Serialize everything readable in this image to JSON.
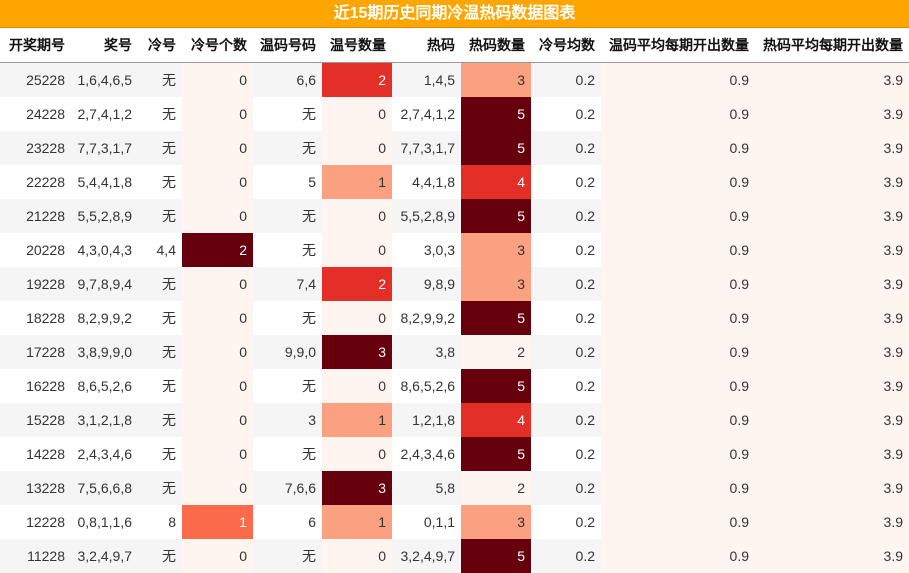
{
  "title": "近15期历史同期冷温热码数据图表",
  "headers": [
    "开奖期号",
    "奖号",
    "冷号",
    "冷号个数",
    "温码号码",
    "温号数量",
    "热码",
    "热码数量",
    "冷号均数",
    "温码平均每期开出数量",
    "热码平均每期开出数量"
  ],
  "colors": {
    "header_bg": "#ffa500",
    "pink": "#fff5f0",
    "light": "#fca082",
    "mid": "#fb6a4a",
    "strong": "#e32f27",
    "dark": "#67000d"
  },
  "rows": [
    {
      "issue": "25228",
      "nums": "1,6,4,6,5",
      "cold": "无",
      "cold_count": "0",
      "warm": "6,6",
      "warm_count": "2",
      "hot": "1,4,5",
      "hot_count": "3",
      "cold_avg": "0.2",
      "warm_avg": "0.9",
      "hot_avg": "3.9"
    },
    {
      "issue": "24228",
      "nums": "2,7,4,1,2",
      "cold": "无",
      "cold_count": "0",
      "warm": "无",
      "warm_count": "0",
      "hot": "2,7,4,1,2",
      "hot_count": "5",
      "cold_avg": "0.2",
      "warm_avg": "0.9",
      "hot_avg": "3.9"
    },
    {
      "issue": "23228",
      "nums": "7,7,3,1,7",
      "cold": "无",
      "cold_count": "0",
      "warm": "无",
      "warm_count": "0",
      "hot": "7,7,3,1,7",
      "hot_count": "5",
      "cold_avg": "0.2",
      "warm_avg": "0.9",
      "hot_avg": "3.9"
    },
    {
      "issue": "22228",
      "nums": "5,4,4,1,8",
      "cold": "无",
      "cold_count": "0",
      "warm": "5",
      "warm_count": "1",
      "hot": "4,4,1,8",
      "hot_count": "4",
      "cold_avg": "0.2",
      "warm_avg": "0.9",
      "hot_avg": "3.9"
    },
    {
      "issue": "21228",
      "nums": "5,5,2,8,9",
      "cold": "无",
      "cold_count": "0",
      "warm": "无",
      "warm_count": "0",
      "hot": "5,5,2,8,9",
      "hot_count": "5",
      "cold_avg": "0.2",
      "warm_avg": "0.9",
      "hot_avg": "3.9"
    },
    {
      "issue": "20228",
      "nums": "4,3,0,4,3",
      "cold": "4,4",
      "cold_count": "2",
      "warm": "无",
      "warm_count": "0",
      "hot": "3,0,3",
      "hot_count": "3",
      "cold_avg": "0.2",
      "warm_avg": "0.9",
      "hot_avg": "3.9"
    },
    {
      "issue": "19228",
      "nums": "9,7,8,9,4",
      "cold": "无",
      "cold_count": "0",
      "warm": "7,4",
      "warm_count": "2",
      "hot": "9,8,9",
      "hot_count": "3",
      "cold_avg": "0.2",
      "warm_avg": "0.9",
      "hot_avg": "3.9"
    },
    {
      "issue": "18228",
      "nums": "8,2,9,9,2",
      "cold": "无",
      "cold_count": "0",
      "warm": "无",
      "warm_count": "0",
      "hot": "8,2,9,9,2",
      "hot_count": "5",
      "cold_avg": "0.2",
      "warm_avg": "0.9",
      "hot_avg": "3.9"
    },
    {
      "issue": "17228",
      "nums": "3,8,9,9,0",
      "cold": "无",
      "cold_count": "0",
      "warm": "9,9,0",
      "warm_count": "3",
      "hot": "3,8",
      "hot_count": "2",
      "cold_avg": "0.2",
      "warm_avg": "0.9",
      "hot_avg": "3.9"
    },
    {
      "issue": "16228",
      "nums": "8,6,5,2,6",
      "cold": "无",
      "cold_count": "0",
      "warm": "无",
      "warm_count": "0",
      "hot": "8,6,5,2,6",
      "hot_count": "5",
      "cold_avg": "0.2",
      "warm_avg": "0.9",
      "hot_avg": "3.9"
    },
    {
      "issue": "15228",
      "nums": "3,1,2,1,8",
      "cold": "无",
      "cold_count": "0",
      "warm": "3",
      "warm_count": "1",
      "hot": "1,2,1,8",
      "hot_count": "4",
      "cold_avg": "0.2",
      "warm_avg": "0.9",
      "hot_avg": "3.9"
    },
    {
      "issue": "14228",
      "nums": "2,4,3,4,6",
      "cold": "无",
      "cold_count": "0",
      "warm": "无",
      "warm_count": "0",
      "hot": "2,4,3,4,6",
      "hot_count": "5",
      "cold_avg": "0.2",
      "warm_avg": "0.9",
      "hot_avg": "3.9"
    },
    {
      "issue": "13228",
      "nums": "7,5,6,6,8",
      "cold": "无",
      "cold_count": "0",
      "warm": "7,6,6",
      "warm_count": "3",
      "hot": "5,8",
      "hot_count": "2",
      "cold_avg": "0.2",
      "warm_avg": "0.9",
      "hot_avg": "3.9"
    },
    {
      "issue": "12228",
      "nums": "0,8,1,1,6",
      "cold": "8",
      "cold_count": "1",
      "warm": "6",
      "warm_count": "1",
      "hot": "0,1,1",
      "hot_count": "3",
      "cold_avg": "0.2",
      "warm_avg": "0.9",
      "hot_avg": "3.9"
    },
    {
      "issue": "11228",
      "nums": "3,2,4,9,7",
      "cold": "无",
      "cold_count": "0",
      "warm": "无",
      "warm_count": "0",
      "hot": "3,2,4,9,7",
      "hot_count": "5",
      "cold_avg": "0.2",
      "warm_avg": "0.9",
      "hot_avg": "3.9"
    }
  ]
}
